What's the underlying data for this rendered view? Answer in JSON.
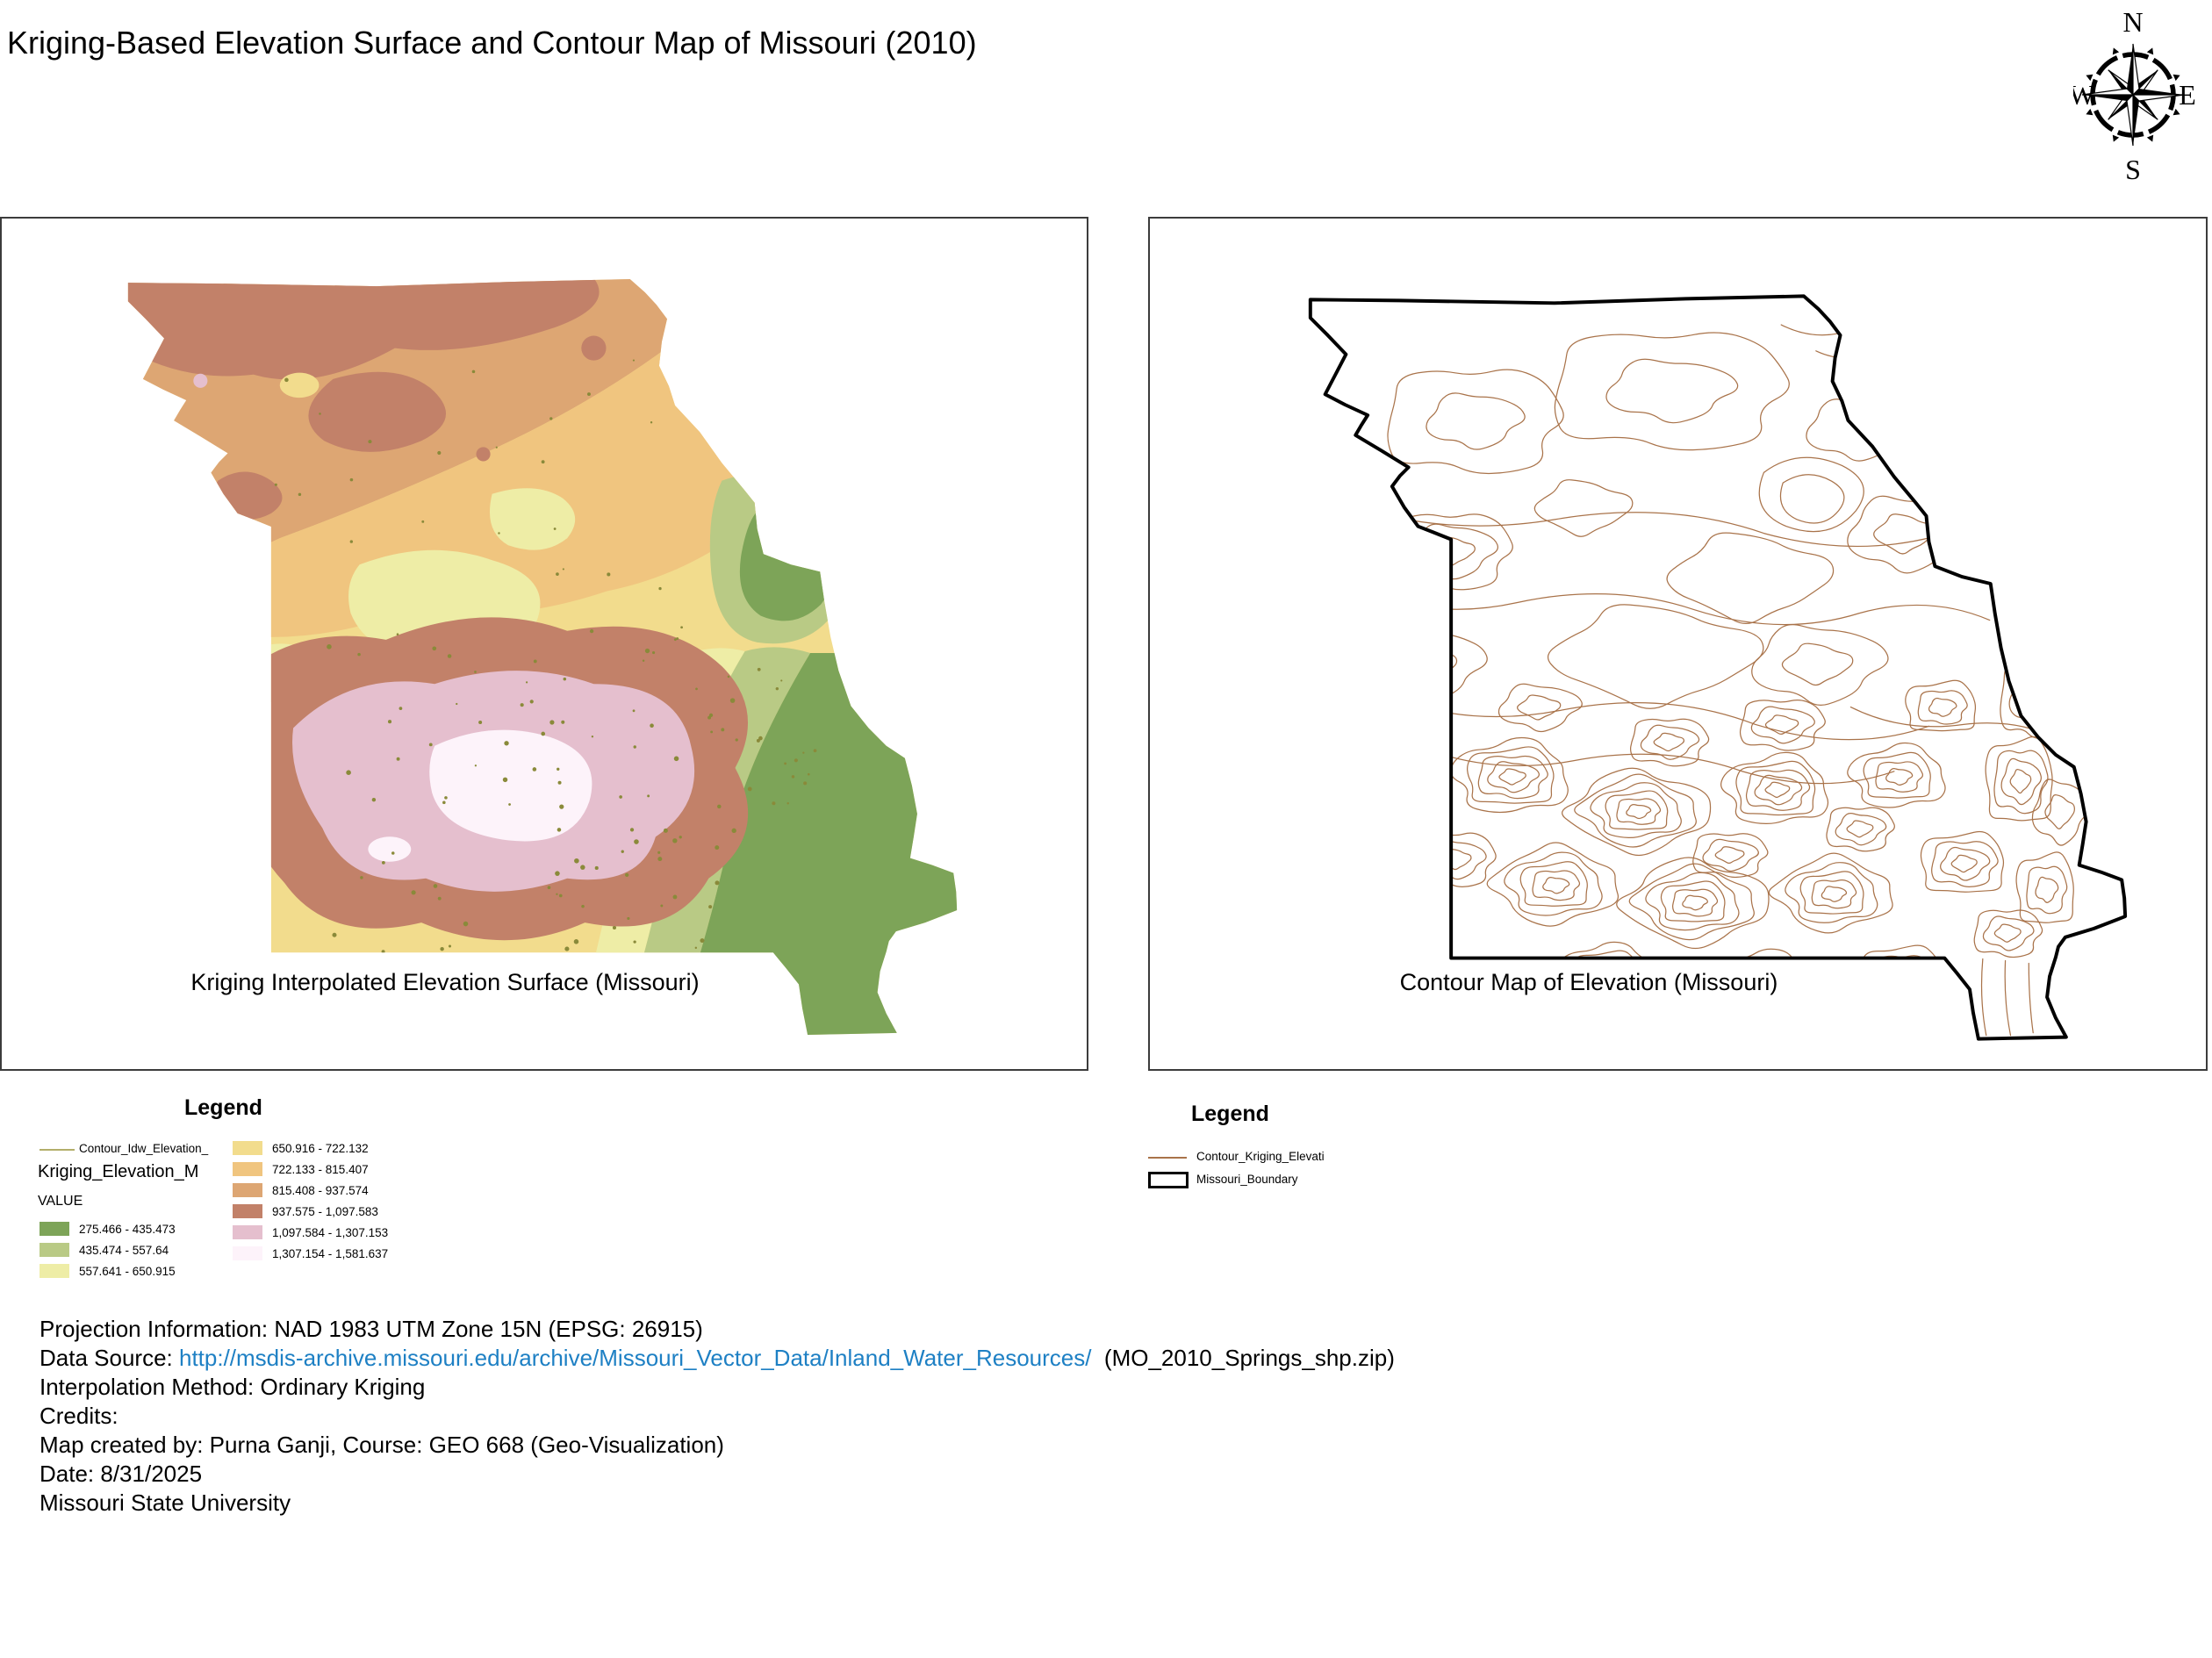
{
  "title": "Kriging-Based Elevation Surface and Contour Map of Missouri (2010)",
  "compass": {
    "north": "N",
    "east": "E",
    "south": "S",
    "west": "W"
  },
  "panels": {
    "left": {
      "caption": "Kriging Interpolated Elevation Surface (Missouri)"
    },
    "right": {
      "caption": "Contour Map of Elevation (Missouri)"
    }
  },
  "left_legend": {
    "title": "Legend",
    "contour_layer": {
      "label": "Contour_Idw_Elevation_",
      "color": "#b3ae6a"
    },
    "layer_name": "Kriging_Elevation_M",
    "field_label": "VALUE",
    "classes": [
      {
        "range": "275.466 - 435.473",
        "color": "#7da458"
      },
      {
        "range": "435.474 - 557.64",
        "color": "#b9ca85"
      },
      {
        "range": "557.641 - 650.915",
        "color": "#eeeda6"
      },
      {
        "range": "650.916 - 722.132",
        "color": "#f2dc8d"
      },
      {
        "range": "722.133 - 815.407",
        "color": "#f0c57f"
      },
      {
        "range": "815.408 - 937.574",
        "color": "#dda673"
      },
      {
        "range": "937.575 - 1,097.583",
        "color": "#c28169"
      },
      {
        "range": "1,097.584 - 1,307.153",
        "color": "#e5bfce"
      },
      {
        "range": "1,307.154 - 1,581.637",
        "color": "#fdf3fa"
      }
    ]
  },
  "right_legend": {
    "title": "Legend",
    "contour_layer": {
      "label": "Contour_Kriging_Elevati",
      "color": "#a9734a"
    },
    "boundary_layer": {
      "label": "Missouri_Boundary",
      "color": "#000000"
    }
  },
  "footer": {
    "projection": "Projection Information: NAD 1983 UTM Zone 15N (EPSG: 26915)",
    "data_source_label": "Data Source: ",
    "data_source_url": "http://msdis-archive.missouri.edu/archive/Missouri_Vector_Data/Inland_Water_Resources/",
    "data_source_suffix": "  (MO_2010_Springs_shp.zip)",
    "interpolation": "Interpolation Method: Ordinary Kriging",
    "credits": "Credits:",
    "created_by": "Map created by: Purna Ganji, Course: GEO 668 (Geo-Visualization)",
    "date": "Date: 8/31/2025",
    "university": "Missouri State University",
    "link_color": "#1e80c4"
  }
}
